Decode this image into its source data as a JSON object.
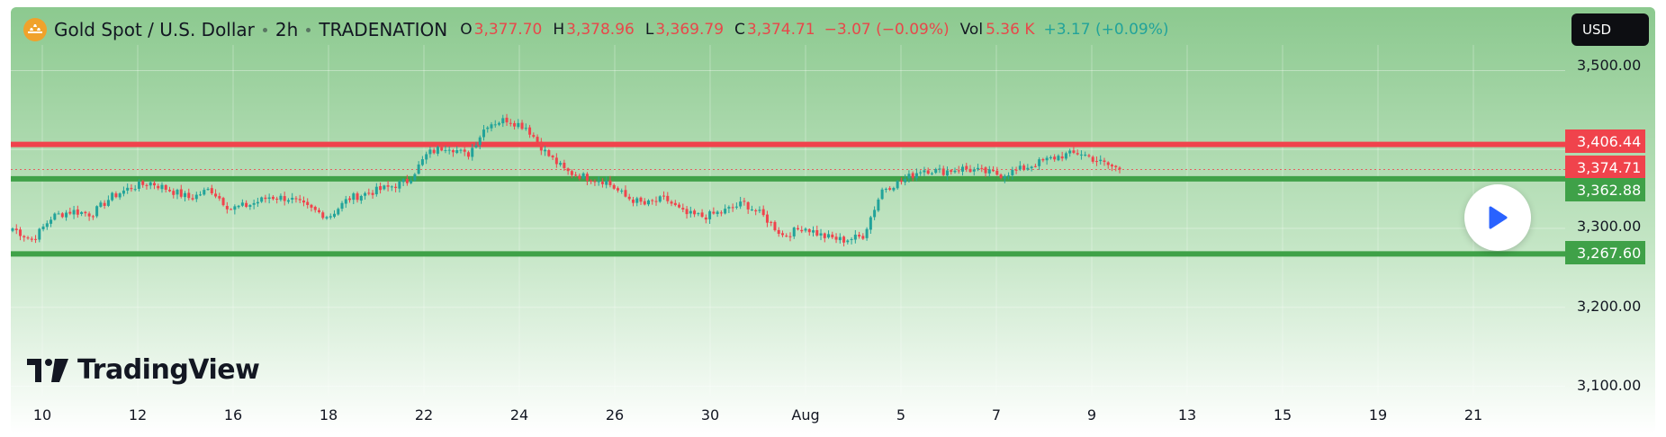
{
  "header": {
    "symbol": "Gold Spot / U.S. Dollar",
    "interval": "2h",
    "exchange": "TRADENATION",
    "ohlc": {
      "o_label": "O",
      "o": "3,377.70",
      "h_label": "H",
      "h": "3,378.96",
      "l_label": "L",
      "l": "3,369.79",
      "c_label": "C",
      "c": "3,374.71",
      "change": "−3.07 (−0.09%)"
    },
    "vol_label": "Vol",
    "vol": "5.36 K",
    "vol_change": "+3.17 (+0.09%)"
  },
  "currency_button": "USD",
  "price_axis": [
    "3,500.00",
    "3,300.00",
    "3,200.00",
    "3,100.00"
  ],
  "price_tags": {
    "resistance": "3,406.44",
    "last": "3,374.71",
    "support_upper": "3,362.88",
    "support_lower": "3,267.60"
  },
  "time_axis": [
    "10",
    "12",
    "16",
    "18",
    "22",
    "24",
    "26",
    "30",
    "Aug",
    "5",
    "7",
    "9",
    "13",
    "15",
    "19",
    "21"
  ],
  "logo_text": "TradingView",
  "colors": {
    "resistance": "#f0434c",
    "support": "#3fa148",
    "up_candle": "#22a39a",
    "down_candle": "#f0434c"
  },
  "chart_data": {
    "type": "candlestick",
    "y_scale": "price",
    "ylim": [
      3070,
      3550
    ],
    "horizontal_levels": [
      {
        "value": 3406.44,
        "color": "#f0434c"
      },
      {
        "value": 3362.88,
        "color": "#3fa148"
      },
      {
        "value": 3267.6,
        "color": "#3fa148"
      }
    ],
    "last_price": 3374.71,
    "close_path": [
      {
        "date": "Jul 9",
        "close": 3300
      },
      {
        "date": "Jul 10",
        "close": 3285
      },
      {
        "date": "Jul 10",
        "close": 3315
      },
      {
        "date": "Jul 11",
        "close": 3322
      },
      {
        "date": "Jul 11",
        "close": 3318
      },
      {
        "date": "Jul 12",
        "close": 3340
      },
      {
        "date": "Jul 12",
        "close": 3352
      },
      {
        "date": "Jul 13",
        "close": 3358
      },
      {
        "date": "Jul 14",
        "close": 3348
      },
      {
        "date": "Jul 15",
        "close": 3338
      },
      {
        "date": "Jul 15",
        "close": 3350
      },
      {
        "date": "Jul 16",
        "close": 3325
      },
      {
        "date": "Jul 16",
        "close": 3330
      },
      {
        "date": "Jul 17",
        "close": 3340
      },
      {
        "date": "Jul 17",
        "close": 3338
      },
      {
        "date": "Jul 18",
        "close": 3325
      },
      {
        "date": "Jul 18",
        "close": 3315
      },
      {
        "date": "Jul 19",
        "close": 3338
      },
      {
        "date": "Jul 20",
        "close": 3345
      },
      {
        "date": "Jul 21",
        "close": 3352
      },
      {
        "date": "Jul 21",
        "close": 3360
      },
      {
        "date": "Jul 22",
        "close": 3395
      },
      {
        "date": "Jul 22",
        "close": 3405
      },
      {
        "date": "Jul 23",
        "close": 3392
      },
      {
        "date": "Jul 23",
        "close": 3432
      },
      {
        "date": "Jul 23",
        "close": 3438
      },
      {
        "date": "Jul 24",
        "close": 3428
      },
      {
        "date": "Jul 24",
        "close": 3395
      },
      {
        "date": "Jul 25",
        "close": 3372
      },
      {
        "date": "Jul 25",
        "close": 3365
      },
      {
        "date": "Jul 26",
        "close": 3360
      },
      {
        "date": "Jul 26",
        "close": 3340
      },
      {
        "date": "Jul 27",
        "close": 3330
      },
      {
        "date": "Jul 28",
        "close": 3338
      },
      {
        "date": "Jul 29",
        "close": 3318
      },
      {
        "date": "Jul 29",
        "close": 3315
      },
      {
        "date": "Jul 30",
        "close": 3322
      },
      {
        "date": "Jul 31",
        "close": 3332
      },
      {
        "date": "Jul 31",
        "close": 3315
      },
      {
        "date": "Aug 1",
        "close": 3290
      },
      {
        "date": "Aug 1",
        "close": 3302
      },
      {
        "date": "Aug 2",
        "close": 3290
      },
      {
        "date": "Aug 3",
        "close": 3285
      },
      {
        "date": "Aug 3",
        "close": 3290
      },
      {
        "date": "Aug 4",
        "close": 3350
      },
      {
        "date": "Aug 4",
        "close": 3360
      },
      {
        "date": "Aug 5",
        "close": 3375
      },
      {
        "date": "Aug 5",
        "close": 3372
      },
      {
        "date": "Aug 6",
        "close": 3376
      },
      {
        "date": "Aug 6",
        "close": 3372
      },
      {
        "date": "Aug 7",
        "close": 3368
      },
      {
        "date": "Aug 7",
        "close": 3375
      },
      {
        "date": "Aug 8",
        "close": 3384
      },
      {
        "date": "Aug 8",
        "close": 3392
      },
      {
        "date": "Aug 9",
        "close": 3396
      },
      {
        "date": "Aug 9",
        "close": 3384
      },
      {
        "date": "Aug 10",
        "close": 3374.71
      }
    ]
  }
}
